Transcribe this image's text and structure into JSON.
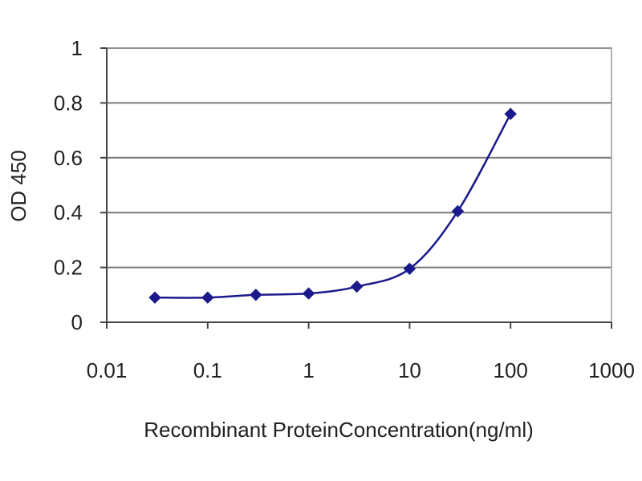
{
  "chart_data": {
    "type": "line",
    "title": "",
    "xlabel": "Recombinant ProteinConcentration(ng/ml)",
    "ylabel": "OD 450",
    "x_scale": "log",
    "xlim": [
      0.01,
      1000
    ],
    "ylim": [
      0,
      1
    ],
    "x_ticks": [
      "0.01",
      "0.1",
      "1",
      "10",
      "100",
      "1000"
    ],
    "x_tick_values": [
      0.01,
      0.1,
      1,
      10,
      100,
      1000
    ],
    "y_ticks": [
      "0",
      "0.2",
      "0.4",
      "0.6",
      "0.8",
      "1"
    ],
    "y_tick_values": [
      0,
      0.2,
      0.4,
      0.6,
      0.8,
      1
    ],
    "grid": "horizontal",
    "legend": "none",
    "series": [
      {
        "x": [
          0.03,
          0.1,
          0.3,
          1,
          3,
          10,
          30,
          100
        ],
        "y": [
          0.09,
          0.09,
          0.1,
          0.105,
          0.13,
          0.195,
          0.405,
          0.76
        ],
        "marker": "diamond"
      }
    ],
    "colors": {
      "series": "#1a1a8c",
      "grid": "#7a7a7a",
      "plot_border": "#9a9a9a"
    }
  }
}
